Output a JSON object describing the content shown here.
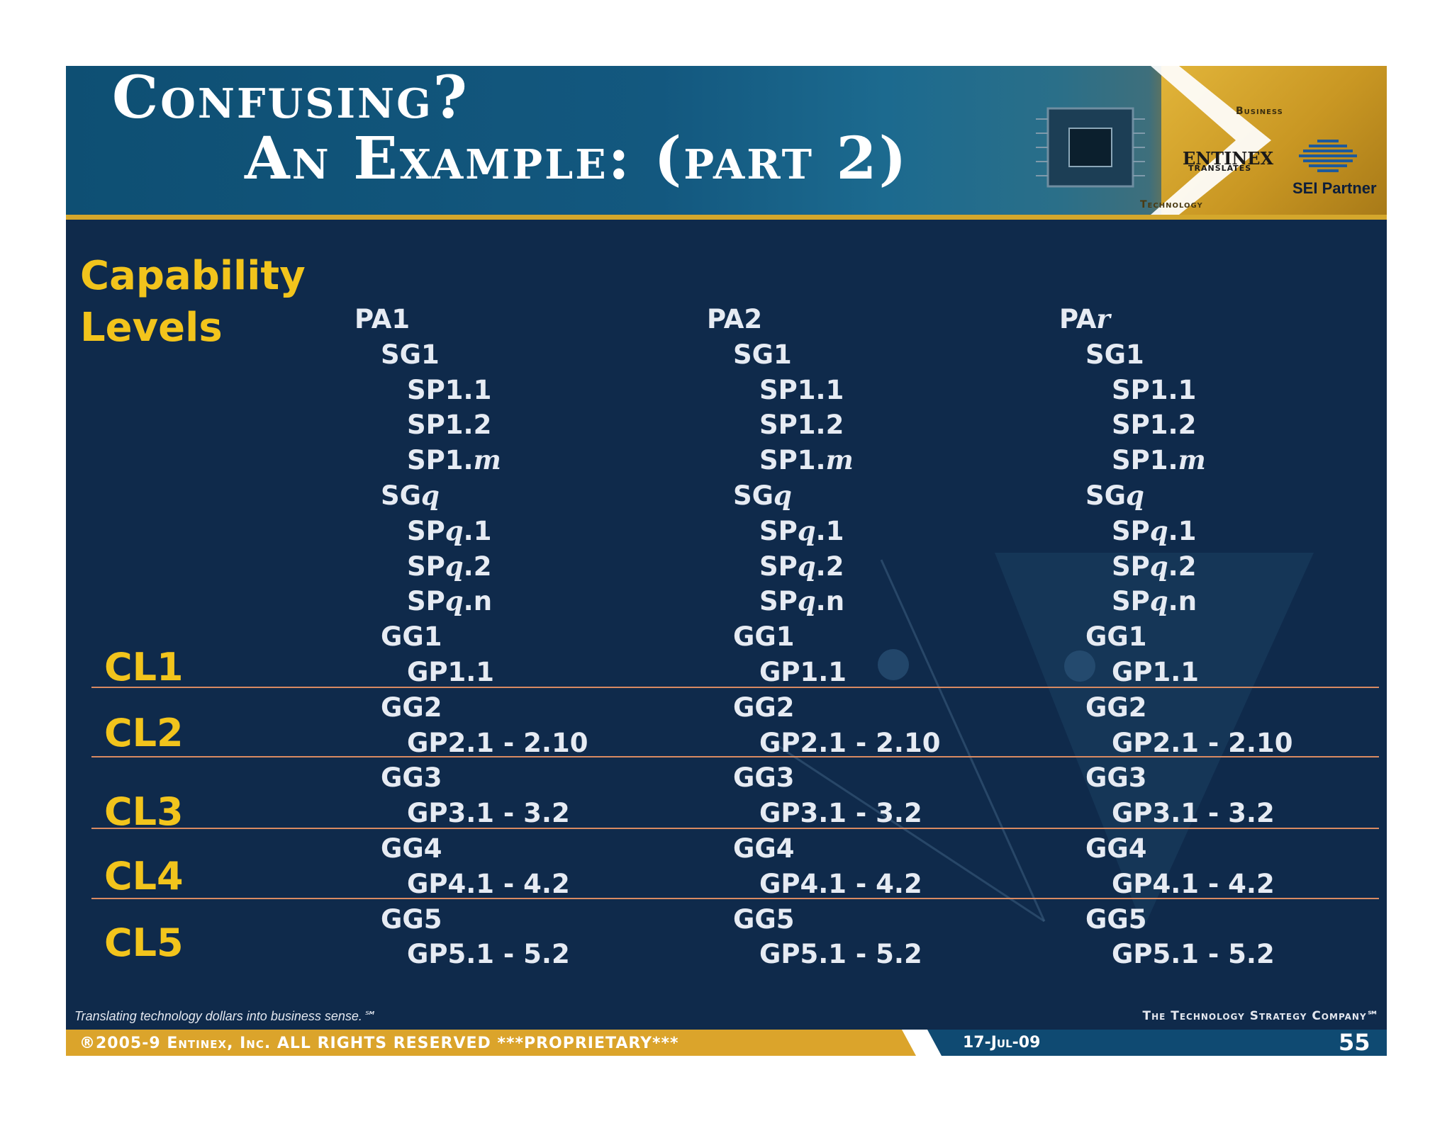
{
  "header": {
    "title_line1": "Confusing?",
    "title_line2": "An Example: (part 2)",
    "logo": {
      "business": "Business",
      "technology": "Technology",
      "entinex": "ENTINEX",
      "translates": "TRANSLATES",
      "sei_partner": "SEI Partner"
    }
  },
  "capability": {
    "label_line1": "Capability",
    "label_line2": "Levels"
  },
  "levels": [
    "CL1",
    "CL2",
    "CL3",
    "CL4",
    "CL5"
  ],
  "columns": [
    {
      "pa": "PA1",
      "items": [
        "SG1",
        "SP1.1",
        "SP1.2",
        "SP1.m",
        "SGq",
        "SPq.1",
        "SPq.2",
        "SPq.n",
        "GG1",
        "GP1.1",
        "GG2",
        "GP2.1 - 2.10",
        "GG3",
        "GP3.1 - 3.2",
        "GG4",
        "GP4.1 - 4.2",
        "GG5",
        "GP5.1 - 5.2"
      ]
    },
    {
      "pa": "PA2",
      "items": [
        "SG1",
        "SP1.1",
        "SP1.2",
        "SP1.m",
        "SGq",
        "SPq.1",
        "SPq.2",
        "SPq.n",
        "GG1",
        "GP1.1",
        "GG2",
        "GP2.1 - 2.10",
        "GG3",
        "GP3.1 - 3.2",
        "GG4",
        "GP4.1 - 4.2",
        "GG5",
        "GP5.1 - 5.2"
      ]
    },
    {
      "pa": "PAr",
      "items": [
        "SG1",
        "SP1.1",
        "SP1.2",
        "SP1.m",
        "SGq",
        "SPq.1",
        "SPq.2",
        "SPq.n",
        "GG1",
        "GP1.1",
        "GG2",
        "GP2.1 - 2.10",
        "GG3",
        "GP3.1 - 3.2",
        "GG4",
        "GP4.1 - 4.2",
        "GG5",
        "GP5.1 - 5.2"
      ]
    }
  ],
  "footer": {
    "tagline": "Translating technology dollars into business sense.℠",
    "company": "The Technology Strategy Company℠",
    "copyright": "®2005-9 Entinex, Inc. ALL RIGHTS RESERVED  ***PROPRIETARY***",
    "date": "17-Jul-09",
    "page": "55"
  },
  "colors": {
    "header_blue": "#0e4f73",
    "body_navy": "#0f2a4b",
    "accent_gold": "#f2c41c",
    "text_light": "#e6ebf3",
    "divider": "#d88a62"
  }
}
